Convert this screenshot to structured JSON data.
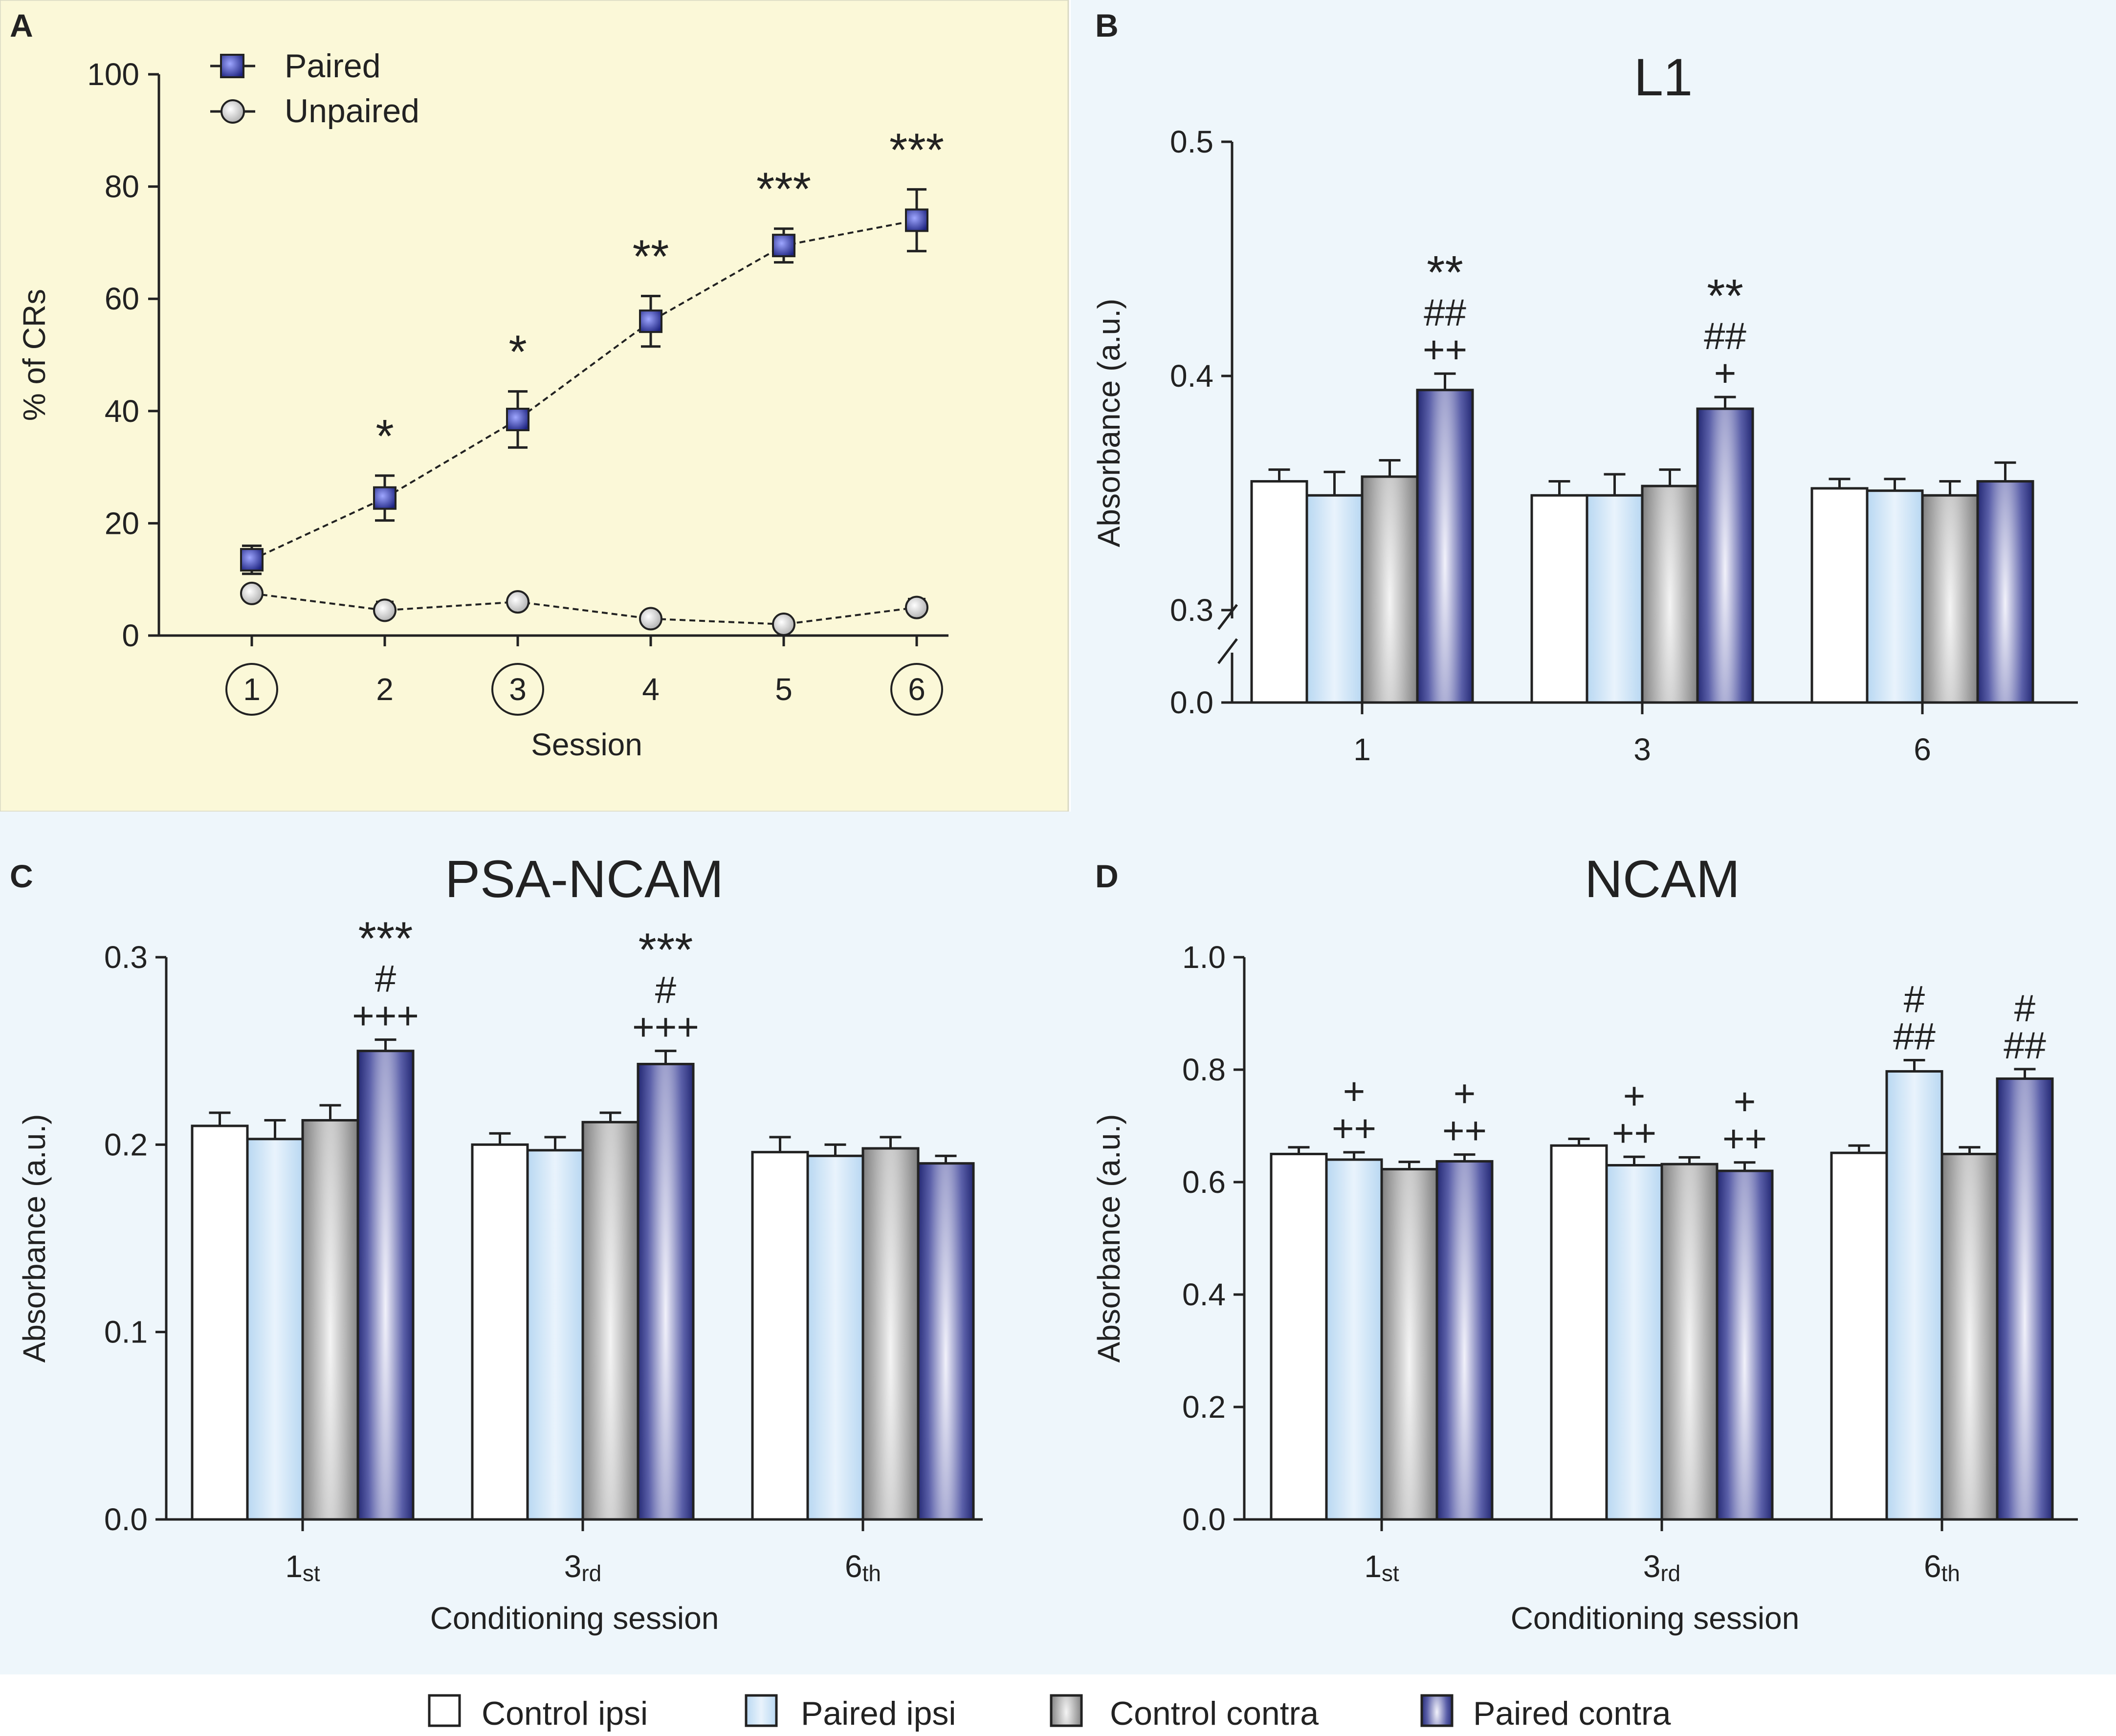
{
  "figure": {
    "colors": {
      "panelA_bg": "#fbf8d8",
      "panel_bg": "#eef6fb",
      "paired_marker": "#2a2f8f",
      "unpaired_marker": "#c8c8c8",
      "control_ipsi": "#ffffff",
      "paired_ipsi": "#cfe4f7",
      "control_contra": "#8c8c8c",
      "paired_contra": "#141a6e"
    }
  },
  "legend": {
    "items": [
      {
        "key": "control_ipsi",
        "label": "Control ipsi"
      },
      {
        "key": "paired_ipsi",
        "label": "Paired ipsi"
      },
      {
        "key": "control_contra",
        "label": "Control contra"
      },
      {
        "key": "paired_contra",
        "label": "Paired contra"
      }
    ]
  },
  "chart_data": [
    {
      "panel": "A",
      "type": "line",
      "title": "",
      "xlabel": "Session",
      "ylabel": "% of CRs",
      "ylim": [
        0,
        100
      ],
      "yticks": [
        0,
        20,
        40,
        60,
        80,
        100
      ],
      "x": [
        1,
        2,
        3,
        4,
        5,
        6
      ],
      "xtick_labels": [
        "1",
        "2",
        "3",
        "4",
        "5",
        "6"
      ],
      "circled_sessions": [
        1,
        3,
        6
      ],
      "series": [
        {
          "name": "Paired",
          "values": [
            13.5,
            24.5,
            38.5,
            56,
            69.5,
            74
          ],
          "errors": [
            2.5,
            4,
            5,
            4.5,
            3,
            5.5
          ],
          "annotations": [
            "",
            "*",
            "*",
            "**",
            "***",
            "***"
          ]
        },
        {
          "name": "Unpaired",
          "values": [
            7.5,
            4.5,
            6,
            3,
            2,
            5
          ],
          "errors": [
            1,
            1.5,
            1,
            0.8,
            0.6,
            1.5
          ],
          "annotations": [
            "",
            "",
            "",
            "",
            "",
            ""
          ]
        }
      ]
    },
    {
      "panel": "B",
      "type": "bar",
      "title": "L1",
      "xlabel": "",
      "ylabel": "Absorbance (a.u.)",
      "ylim": [
        0.3,
        0.5
      ],
      "axis_break": true,
      "yticks": [
        "0.0",
        "0.3",
        "0.4",
        "0.5"
      ],
      "categories": [
        "1",
        "3",
        "6"
      ],
      "category_suffix": [
        "",
        "",
        ""
      ],
      "series": [
        {
          "name": "Control ipsi",
          "key": "control_ipsi",
          "values": [
            0.355,
            0.349,
            0.352
          ],
          "errors": [
            0.005,
            0.006,
            0.004
          ]
        },
        {
          "name": "Paired ipsi",
          "key": "paired_ipsi",
          "values": [
            0.349,
            0.349,
            0.351
          ],
          "errors": [
            0.01,
            0.009,
            0.005
          ]
        },
        {
          "name": "Control contra",
          "key": "control_contra",
          "values": [
            0.357,
            0.353,
            0.349
          ],
          "errors": [
            0.007,
            0.007,
            0.006
          ]
        },
        {
          "name": "Paired contra",
          "key": "paired_contra",
          "values": [
            0.394,
            0.386,
            0.355
          ],
          "errors": [
            0.007,
            0.005,
            0.008
          ]
        }
      ],
      "annotations": [
        {
          "category": 0,
          "series": 3,
          "lines": [
            "**",
            "##",
            "++"
          ]
        },
        {
          "category": 1,
          "series": 3,
          "lines": [
            "**",
            "##",
            "+"
          ]
        }
      ]
    },
    {
      "panel": "C",
      "type": "bar",
      "title": "PSA-NCAM",
      "xlabel": "Conditioning session",
      "ylabel": "Absorbance (a.u.)",
      "ylim": [
        0.0,
        0.3
      ],
      "yticks": [
        "0.0",
        "0.1",
        "0.2",
        "0.3"
      ],
      "categories": [
        "1",
        "3",
        "6"
      ],
      "category_suffix": [
        "st",
        "rd",
        "th"
      ],
      "series": [
        {
          "name": "Control ipsi",
          "key": "control_ipsi",
          "values": [
            0.21,
            0.2,
            0.196
          ],
          "errors": [
            0.007,
            0.006,
            0.008
          ]
        },
        {
          "name": "Paired ipsi",
          "key": "paired_ipsi",
          "values": [
            0.203,
            0.197,
            0.194
          ],
          "errors": [
            0.01,
            0.007,
            0.006
          ]
        },
        {
          "name": "Control contra",
          "key": "control_contra",
          "values": [
            0.213,
            0.212,
            0.198
          ],
          "errors": [
            0.008,
            0.005,
            0.006
          ]
        },
        {
          "name": "Paired contra",
          "key": "paired_contra",
          "values": [
            0.25,
            0.243,
            0.19
          ],
          "errors": [
            0.006,
            0.007,
            0.004
          ]
        }
      ],
      "annotations": [
        {
          "category": 0,
          "series": 3,
          "lines": [
            "***",
            "#",
            "+++"
          ]
        },
        {
          "category": 1,
          "series": 3,
          "lines": [
            "***",
            "#",
            "+++"
          ]
        }
      ]
    },
    {
      "panel": "D",
      "type": "bar",
      "title": "NCAM",
      "xlabel": "Conditioning session",
      "ylabel": "Absorbance (a.u.)",
      "ylim": [
        0.0,
        1.0
      ],
      "yticks": [
        "0.0",
        "0.2",
        "0.4",
        "0.6",
        "0.8",
        "1.0"
      ],
      "categories": [
        "1",
        "3",
        "6"
      ],
      "category_suffix": [
        "st",
        "rd",
        "th"
      ],
      "series": [
        {
          "name": "Control ipsi",
          "key": "control_ipsi",
          "values": [
            0.65,
            0.665,
            0.652
          ],
          "errors": [
            0.012,
            0.012,
            0.013
          ]
        },
        {
          "name": "Paired ipsi",
          "key": "paired_ipsi",
          "values": [
            0.64,
            0.63,
            0.797
          ],
          "errors": [
            0.013,
            0.015,
            0.02
          ]
        },
        {
          "name": "Control contra",
          "key": "control_contra",
          "values": [
            0.623,
            0.632,
            0.65
          ],
          "errors": [
            0.013,
            0.012,
            0.012
          ]
        },
        {
          "name": "Paired contra",
          "key": "paired_contra",
          "values": [
            0.637,
            0.62,
            0.784
          ],
          "errors": [
            0.012,
            0.015,
            0.017
          ]
        }
      ],
      "annotations": [
        {
          "category": 0,
          "series": 1,
          "lines": [
            "+",
            "++"
          ]
        },
        {
          "category": 0,
          "series": 3,
          "lines": [
            "+",
            "++"
          ]
        },
        {
          "category": 1,
          "series": 1,
          "lines": [
            "+",
            "++"
          ]
        },
        {
          "category": 1,
          "series": 3,
          "lines": [
            "+",
            "++"
          ]
        },
        {
          "category": 2,
          "series": 1,
          "lines": [
            "#",
            "##"
          ]
        },
        {
          "category": 2,
          "series": 3,
          "lines": [
            "#",
            "##"
          ]
        }
      ]
    }
  ]
}
